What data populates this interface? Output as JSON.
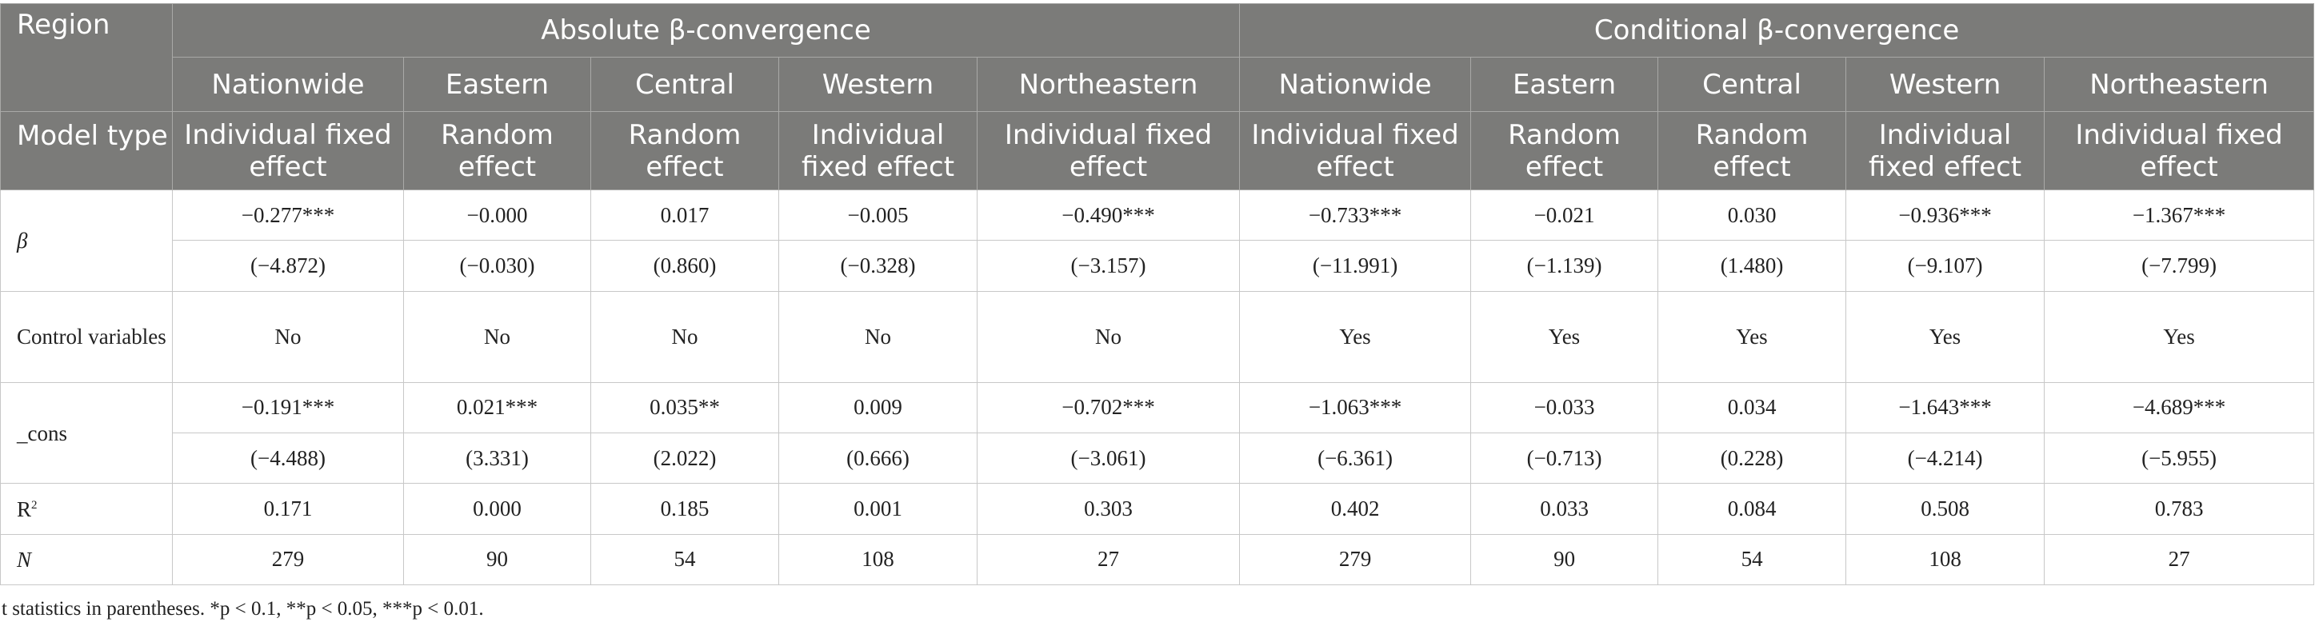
{
  "header": {
    "region_label": "Region",
    "group_absolute": "Absolute β-convergence",
    "group_conditional": "Conditional β-convergence",
    "regions": [
      "Nationwide",
      "Eastern",
      "Central",
      "Western",
      "Northeastern",
      "Nationwide",
      "Eastern",
      "Central",
      "Western",
      "Northeastern"
    ],
    "model_type_label": "Model type",
    "model_types": [
      "Individual fixed effect",
      "Random effect",
      "Random effect",
      "Individual fixed effect",
      "Individual fixed effect",
      "Individual fixed effect",
      "Random effect",
      "Random effect",
      "Individual fixed effect",
      "Individual fixed effect"
    ]
  },
  "rows": {
    "beta": {
      "label": "β",
      "coef": [
        "−0.277***",
        "−0.000",
        "0.017",
        "−0.005",
        "−0.490***",
        "−0.733***",
        "−0.021",
        "0.030",
        "−0.936***",
        "−1.367***"
      ],
      "tstat": [
        "(−4.872)",
        "(−0.030)",
        "(0.860)",
        "(−0.328)",
        "(−3.157)",
        "(−11.991)",
        "(−1.139)",
        "(1.480)",
        "(−9.107)",
        "(−7.799)"
      ]
    },
    "control": {
      "label": "Control variables",
      "values": [
        "No",
        "No",
        "No",
        "No",
        "No",
        "Yes",
        "Yes",
        "Yes",
        "Yes",
        "Yes"
      ]
    },
    "cons": {
      "label": "_cons",
      "coef": [
        "−0.191***",
        "0.021***",
        "0.035**",
        "0.009",
        "−0.702***",
        "−1.063***",
        "−0.033",
        "0.034",
        "−1.643***",
        "−4.689***"
      ],
      "tstat": [
        "(−4.488)",
        "(3.331)",
        "(2.022)",
        "(0.666)",
        "(−3.061)",
        "(−6.361)",
        "(−0.713)",
        "(0.228)",
        "(−4.214)",
        "(−5.955)"
      ]
    },
    "r2": {
      "label": "R",
      "label_sup": "2",
      "values": [
        "0.171",
        "0.000",
        "0.185",
        "0.001",
        "0.303",
        "0.402",
        "0.033",
        "0.084",
        "0.508",
        "0.783"
      ]
    },
    "n": {
      "label": "N",
      "values": [
        "279",
        "90",
        "54",
        "108",
        "27",
        "279",
        "90",
        "54",
        "108",
        "27"
      ]
    }
  },
  "footnote": "t statistics in parentheses. *p < 0.1, **p < 0.05, ***p < 0.01.",
  "colors": {
    "header_bg": "#7b7b79",
    "header_text": "#ffffff",
    "border": "#c8c8c8"
  }
}
